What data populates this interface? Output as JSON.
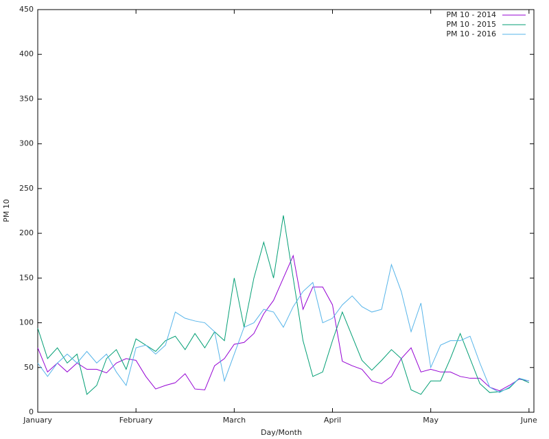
{
  "chart_data": {
    "type": "line",
    "xlabel": "Day/Month",
    "ylabel": "PM 10",
    "x": [
      0,
      0.1,
      0.2,
      0.3,
      0.4,
      0.5,
      0.6,
      0.7,
      0.8,
      0.9,
      1,
      1.1,
      1.2,
      1.3,
      1.4,
      1.5,
      1.6,
      1.7,
      1.8,
      1.9,
      2,
      2.1,
      2.2,
      2.3,
      2.4,
      2.5,
      2.6,
      2.7,
      2.8,
      2.9,
      3,
      3.1,
      3.2,
      3.3,
      3.4,
      3.5,
      3.6,
      3.7,
      3.8,
      3.9,
      4,
      4.1,
      4.2,
      4.3,
      4.4,
      4.5,
      4.6,
      4.7,
      4.8,
      4.9,
      5
    ],
    "series": [
      {
        "name": "PM 10 - 2014",
        "color": "#9400d3",
        "values": [
          72,
          45,
          55,
          45,
          55,
          48,
          48,
          44,
          55,
          60,
          58,
          40,
          26,
          30,
          33,
          43,
          26,
          25,
          52,
          60,
          76,
          78,
          88,
          110,
          125,
          150,
          175,
          115,
          140,
          140,
          120,
          57,
          52,
          48,
          35,
          32,
          40,
          60,
          72,
          45,
          48,
          45,
          45,
          40,
          38,
          38,
          28,
          24,
          30,
          37,
          35
        ]
      },
      {
        "name": "PM 10 - 2015",
        "color": "#009e73",
        "values": [
          94,
          60,
          72,
          55,
          65,
          20,
          30,
          60,
          70,
          48,
          82,
          75,
          68,
          80,
          85,
          70,
          88,
          72,
          90,
          80,
          150,
          95,
          150,
          190,
          150,
          220,
          150,
          80,
          40,
          45,
          80,
          112,
          85,
          58,
          47,
          58,
          70,
          60,
          25,
          20,
          35,
          35,
          60,
          88,
          60,
          32,
          22,
          23,
          27,
          38,
          33
        ]
      },
      {
        "name": "PM 10 - 2016",
        "color": "#56b4e9",
        "values": [
          55,
          40,
          55,
          65,
          55,
          68,
          55,
          65,
          45,
          30,
          72,
          75,
          65,
          75,
          112,
          105,
          102,
          100,
          90,
          35,
          65,
          95,
          100,
          115,
          112,
          95,
          118,
          135,
          145,
          100,
          105,
          120,
          130,
          118,
          112,
          115,
          165,
          135,
          90,
          122,
          50,
          75,
          80,
          80,
          85,
          55,
          28,
          22,
          28,
          38,
          35
        ]
      }
    ],
    "xlim": [
      0,
      5.05
    ],
    "xticks": [
      {
        "value": 0,
        "label": "January"
      },
      {
        "value": 1,
        "label": "February"
      },
      {
        "value": 2,
        "label": "March"
      },
      {
        "value": 3,
        "label": "April"
      },
      {
        "value": 4,
        "label": "May"
      },
      {
        "value": 5,
        "label": "June"
      }
    ],
    "ylim": [
      0,
      450
    ],
    "yticks": [
      0,
      50,
      100,
      150,
      200,
      250,
      300,
      350,
      400,
      450
    ],
    "grid": false,
    "legend": "top-right"
  }
}
